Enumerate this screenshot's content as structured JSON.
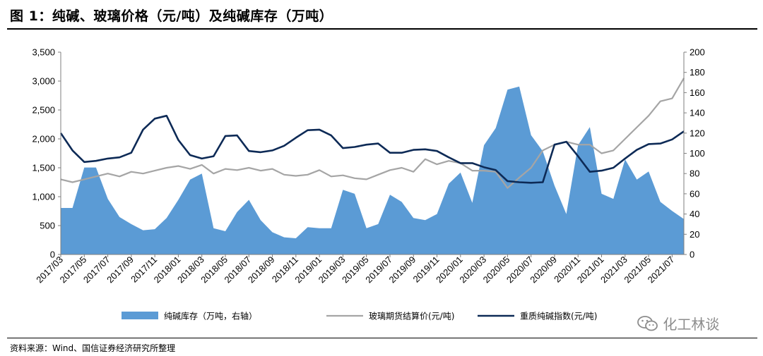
{
  "header": {
    "figure_title": "图 1：纯碱、玻璃价格（元/吨）及纯碱库存（万吨）"
  },
  "footer": {
    "source": "资料来源：Wind、国信证券经济研究所整理",
    "watermark": "化工林谈",
    "watermark_icon": "wechat-icon"
  },
  "colors": {
    "inventory_fill": "#5b9bd5",
    "glass_line": "#a5a5a5",
    "soda_line": "#0d2a56",
    "axis": "#7f7f7f"
  },
  "chart_data": {
    "type": "area",
    "title": "",
    "xlabel": "",
    "ylabel": "",
    "ylim": [
      0,
      3500
    ],
    "y2lim": [
      0,
      200
    ],
    "y_ticks": [
      "0",
      "500",
      "1,000",
      "1,500",
      "2,000",
      "2,500",
      "3,000",
      "3,500"
    ],
    "y2_ticks": [
      "0",
      "20",
      "40",
      "60",
      "80",
      "100",
      "120",
      "140",
      "160",
      "180",
      "200"
    ],
    "x_ticks": [
      "2017/03",
      "2017/05",
      "2017/07",
      "2017/09",
      "2017/11",
      "2018/01",
      "2018/03",
      "2018/05",
      "2018/07",
      "2018/09",
      "2018/11",
      "2019/01",
      "2019/03",
      "2019/05",
      "2019/07",
      "2019/09",
      "2019/11",
      "2020/01",
      "2020/03",
      "2020/05",
      "2020/07",
      "2020/09",
      "2020/11",
      "2021/01",
      "2021/03",
      "2021/05",
      "2021/07"
    ],
    "x_start": "2017/03",
    "x_end": "2021/08",
    "grid": false,
    "legend_position": "bottom",
    "series": [
      {
        "name": "纯碱库存（万吨，右轴）",
        "kind": "area",
        "axis": "right",
        "x": [
          "2017/03",
          "2017/04",
          "2017/05",
          "2017/06",
          "2017/07",
          "2017/08",
          "2017/09",
          "2017/10",
          "2017/11",
          "2017/12",
          "2018/01",
          "2018/02",
          "2018/03",
          "2018/04",
          "2018/05",
          "2018/06",
          "2018/07",
          "2018/08",
          "2018/09",
          "2018/10",
          "2018/11",
          "2018/12",
          "2019/01",
          "2019/02",
          "2019/03",
          "2019/04",
          "2019/05",
          "2019/06",
          "2019/07",
          "2019/08",
          "2019/09",
          "2019/10",
          "2019/11",
          "2019/12",
          "2020/01",
          "2020/02",
          "2020/03",
          "2020/04",
          "2020/05",
          "2020/06",
          "2020/07",
          "2020/08",
          "2020/09",
          "2020/10",
          "2020/11",
          "2020/12",
          "2021/01",
          "2021/02",
          "2021/03",
          "2021/04",
          "2021/05",
          "2021/06",
          "2021/07",
          "2021/08"
        ],
        "values": [
          46,
          46,
          86,
          86,
          55,
          37,
          30,
          24,
          25,
          36,
          54,
          74,
          80,
          26,
          23,
          42,
          54,
          34,
          22,
          17,
          16,
          27,
          26,
          26,
          64,
          60,
          26,
          30,
          59,
          52,
          36,
          34,
          40,
          70,
          81,
          51,
          108,
          125,
          163,
          166,
          118,
          102,
          68,
          40,
          108,
          126,
          60,
          55,
          94,
          74,
          82,
          52,
          43,
          35
        ]
      },
      {
        "name": "玻璃期货结算价(元/吨)",
        "kind": "line",
        "axis": "left",
        "x": [
          "2017/03",
          "2017/04",
          "2017/05",
          "2017/06",
          "2017/07",
          "2017/08",
          "2017/09",
          "2017/10",
          "2017/11",
          "2017/12",
          "2018/01",
          "2018/02",
          "2018/03",
          "2018/04",
          "2018/05",
          "2018/06",
          "2018/07",
          "2018/08",
          "2018/09",
          "2018/10",
          "2018/11",
          "2018/12",
          "2019/01",
          "2019/02",
          "2019/03",
          "2019/04",
          "2019/05",
          "2019/06",
          "2019/07",
          "2019/08",
          "2019/09",
          "2019/10",
          "2019/11",
          "2019/12",
          "2020/01",
          "2020/02",
          "2020/03",
          "2020/04",
          "2020/05",
          "2020/06",
          "2020/07",
          "2020/08",
          "2020/09",
          "2020/10",
          "2020/11",
          "2020/12",
          "2021/01",
          "2021/02",
          "2021/03",
          "2021/04",
          "2021/05",
          "2021/06",
          "2021/07",
          "2021/08"
        ],
        "values": [
          1300,
          1250,
          1300,
          1350,
          1400,
          1350,
          1430,
          1400,
          1450,
          1500,
          1530,
          1480,
          1550,
          1400,
          1480,
          1460,
          1500,
          1450,
          1480,
          1380,
          1360,
          1380,
          1460,
          1350,
          1370,
          1320,
          1300,
          1380,
          1460,
          1500,
          1430,
          1650,
          1560,
          1620,
          1580,
          1450,
          1450,
          1430,
          1150,
          1330,
          1500,
          1800,
          1900,
          1950,
          1900,
          1900,
          1750,
          1800,
          2000,
          2200,
          2400,
          2650,
          2700,
          3050
        ]
      },
      {
        "name": "重质纯碱指数(元/吨)",
        "kind": "line",
        "axis": "left",
        "x": [
          "2017/03",
          "2017/04",
          "2017/05",
          "2017/06",
          "2017/07",
          "2017/08",
          "2017/09",
          "2017/10",
          "2017/11",
          "2017/12",
          "2018/01",
          "2018/02",
          "2018/03",
          "2018/04",
          "2018/05",
          "2018/06",
          "2018/07",
          "2018/08",
          "2018/09",
          "2018/10",
          "2018/11",
          "2018/12",
          "2019/01",
          "2019/02",
          "2019/03",
          "2019/04",
          "2019/05",
          "2019/06",
          "2019/07",
          "2019/08",
          "2019/09",
          "2019/10",
          "2019/11",
          "2019/12",
          "2020/01",
          "2020/02",
          "2020/03",
          "2020/04",
          "2020/05",
          "2020/06",
          "2020/07",
          "2020/08",
          "2020/09",
          "2020/10",
          "2020/11",
          "2020/12",
          "2021/01",
          "2021/02",
          "2021/03",
          "2021/04",
          "2021/05",
          "2021/06",
          "2021/07",
          "2021/08"
        ],
        "values": [
          2100,
          1800,
          1600,
          1620,
          1660,
          1680,
          1760,
          2160,
          2350,
          2400,
          1980,
          1720,
          1660,
          1700,
          2050,
          2060,
          1790,
          1770,
          1800,
          1880,
          2020,
          2150,
          2160,
          2060,
          1840,
          1860,
          1900,
          1920,
          1760,
          1760,
          1810,
          1820,
          1790,
          1680,
          1580,
          1580,
          1510,
          1460,
          1270,
          1250,
          1240,
          1250,
          1900,
          1950,
          1700,
          1430,
          1450,
          1500,
          1660,
          1810,
          1910,
          1920,
          1990,
          2130
        ]
      }
    ]
  }
}
